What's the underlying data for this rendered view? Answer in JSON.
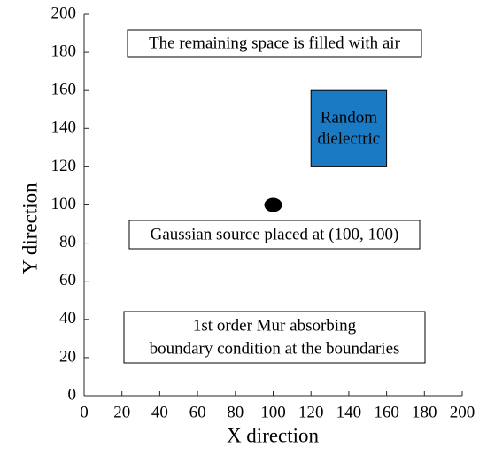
{
  "chart_data": {
    "type": "scatter",
    "xlabel": "X direction",
    "ylabel": "Y direction",
    "xlim": [
      0,
      200
    ],
    "ylim": [
      0,
      200
    ],
    "xticks": [
      0,
      20,
      40,
      60,
      80,
      100,
      120,
      140,
      160,
      180,
      200
    ],
    "yticks": [
      0,
      20,
      40,
      60,
      80,
      100,
      120,
      140,
      160,
      180,
      200
    ],
    "x": [
      100
    ],
    "values": [
      100
    ],
    "color": "#000000",
    "region": {
      "x": [
        120,
        160
      ],
      "y": [
        120,
        160
      ],
      "color": "#1a7bc4",
      "label": [
        "Random",
        "dielectric"
      ]
    },
    "annotations": [
      [
        "The remaining space is filled with air"
      ],
      [
        "Gaussian source placed at (100, 100)"
      ],
      [
        "1st order Mur absorbing",
        "boundary condition at the boundaries"
      ]
    ]
  }
}
